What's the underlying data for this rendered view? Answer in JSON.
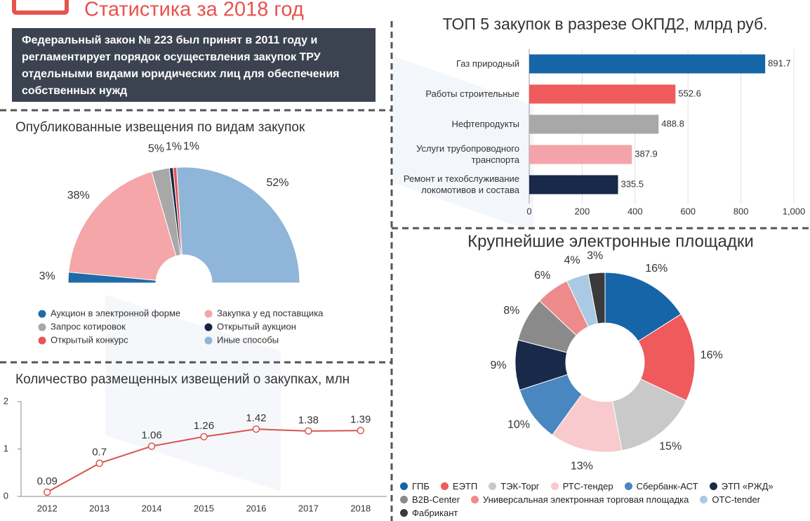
{
  "header": {
    "title": "Статистика за 2018 год",
    "description": "Федеральный закон № 223 был принят в 2011 году и регламентирует порядок осуществления закупок ТРУ отдельными видами юридических лиц для обеспечения собственных нужд"
  },
  "chart_data": [
    {
      "type": "donut",
      "half": true,
      "title": "Опубликованные извещения по видам закупок",
      "categories": [
        "Аукцион в электронной форме",
        "Закупка у ед поставщика",
        "Запрос котировок",
        "Открытый аукцион",
        "Открытый конкурс",
        "Иные способы"
      ],
      "values": [
        3,
        38,
        5,
        1,
        1,
        52
      ],
      "value_labels": [
        "3%",
        "38%",
        "5%",
        "1%",
        "1%",
        "52%"
      ],
      "colors": [
        "#1f6aa8",
        "#f4a6a8",
        "#a8a8a8",
        "#17253f",
        "#e8565a",
        "#8fb5d8"
      ]
    },
    {
      "type": "bar",
      "orientation": "horizontal",
      "title": "ТОП 5 закупок в разрезе ОКПД2, млрд руб.",
      "categories": [
        "Газ природный",
        "Работы строительные",
        "Нефтепродукты",
        "Услуги трубопроводного транспорта",
        "Ремонт и техобслуживание локомотивов и состава"
      ],
      "values": [
        891.7,
        552.6,
        488.8,
        387.9,
        335.5
      ],
      "colors": [
        "#1565a8",
        "#ef5a5c",
        "#a8a8a8",
        "#f4a3aa",
        "#18294a"
      ],
      "xlim": [
        0,
        1000
      ],
      "xticks": [
        0,
        200,
        400,
        600,
        800,
        {
          "value": 1000,
          "label": "1,000"
        }
      ],
      "grid": true
    },
    {
      "type": "donut",
      "half": false,
      "title": "Крупнейшие электронные площадки",
      "categories": [
        "ГПБ",
        "ЕЭТП",
        "ТЭК-Торг",
        "РТС-тендер",
        "Сбербанк-АСТ",
        "ЭТП «РЖД»",
        "B2B-Center",
        "Универсальная электронная торговая площадка",
        "OTC-tender",
        "Фабрикант"
      ],
      "values": [
        16,
        16,
        15,
        13,
        10,
        9,
        8,
        6,
        4,
        3
      ],
      "value_labels": [
        "16%",
        "16%",
        "15%",
        "13%",
        "10%",
        "9%",
        "8%",
        "6%",
        "4%",
        "3%"
      ],
      "colors": [
        "#1565a8",
        "#ef5a5c",
        "#c9c9c9",
        "#f8c9cd",
        "#4a86c0",
        "#18294a",
        "#8a8a8a",
        "#ee8a8c",
        "#a9c9e4",
        "#3a3a3c"
      ]
    },
    {
      "type": "line",
      "title": "Количество размещенных извещений о закупках, млн",
      "categories": [
        "2012",
        "2013",
        "2014",
        "2015",
        "2016",
        "2017",
        "2018"
      ],
      "values": [
        0.09,
        0.7,
        1.06,
        1.26,
        1.42,
        1.38,
        1.39
      ],
      "color": "#d9534f",
      "ylim": [
        0,
        2
      ],
      "yticks": [
        0,
        1,
        2
      ]
    }
  ]
}
